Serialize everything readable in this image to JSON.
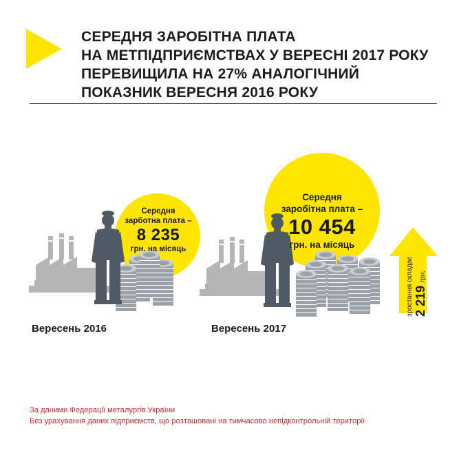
{
  "title": {
    "line1": "СЕРЕДНЯ ЗАРОБІТНА ПЛАТА",
    "line2": "НА МЕТПІДПРИЄМСТВАХ У ВЕРЕСНІ 2017 РОКУ",
    "line3": "ПЕРЕВИЩИЛА НА 27% АНАЛОГІЧНИЙ",
    "line4": "ПОКАЗНИК ВЕРЕСНЯ 2016 РОКУ"
  },
  "colors": {
    "accent": "#FFE500",
    "figure": "#505a64",
    "factory": "#b5b5b5",
    "money": "#9aa1a8",
    "source_text": "#d42a2a"
  },
  "left_panel": {
    "label_line1": "Середня",
    "label_line2": "зарботна плата –",
    "value": "8 235",
    "unit": "грн. на місяць",
    "period": "Вересень 2016"
  },
  "right_panel": {
    "label_line1": "Середня",
    "label_line2": "заробітна плата –",
    "value": "10 454",
    "unit": "грн. на місяць",
    "period": "Вересень 2017"
  },
  "growth": {
    "label": "зростання склaдає",
    "value": "2 219",
    "unit": "грн."
  },
  "source": {
    "line1": "За даними Федерації металургів України",
    "line2": "Без урахування даних підприємств, що розташовані на тимчасово непідконтрольній території"
  },
  "icons": [
    "arrow-mark-icon",
    "factory-icon",
    "worker-icon",
    "money-stack-icon",
    "growth-arrow-icon"
  ]
}
